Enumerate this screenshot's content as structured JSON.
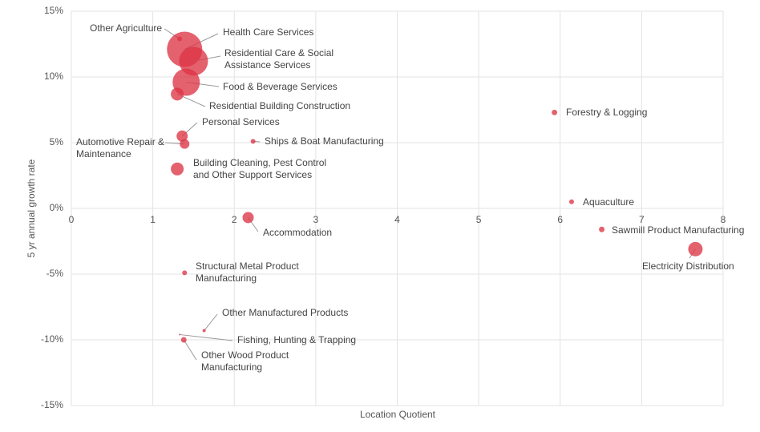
{
  "chart_data": {
    "type": "bubble",
    "x_label": "Location Quotient",
    "y_label": "5 yr annual growth rate",
    "color": "#dc3545",
    "grid": true,
    "categories": [
      "Other Agriculture",
      "Health Care Services",
      "Residential Care & Social Assistance Services",
      "Food & Beverage Services",
      "Residential Building Construction",
      "Personal Services",
      "Automotive Repair & Maintenance",
      "Ships & Boat Manufacturing",
      "Building Cleaning, Pest Control and Other Support Services",
      "Accommodation",
      "Forestry & Logging",
      "Aquaculture",
      "Sawmill Product Manufacturing",
      "Electricity Distribution",
      "Structural Metal Product Manufacturing",
      "Other Manufactured Products",
      "Fishing, Hunting & Trapping",
      "Other Wood Product Manufacturing"
    ],
    "x": [
      1.33,
      1.39,
      1.5,
      1.41,
      1.3,
      1.36,
      1.39,
      2.23,
      1.3,
      2.17,
      5.93,
      6.14,
      6.51,
      7.66,
      1.39,
      1.63,
      1.33,
      1.38
    ],
    "values": [
      12.9,
      12.1,
      11.2,
      9.6,
      8.7,
      5.5,
      4.9,
      5.1,
      3.0,
      -0.7,
      7.3,
      0.5,
      -1.6,
      -3.1,
      -4.9,
      -9.3,
      -9.6,
      -10.0
    ],
    "sizes": [
      9,
      484,
      324,
      289,
      64,
      49,
      36,
      9,
      64,
      49,
      12,
      9,
      12,
      81,
      9,
      4,
      1,
      12
    ],
    "xlim": [
      0,
      8
    ],
    "xticks": [
      0,
      1,
      2,
      3,
      4,
      5,
      6,
      7,
      8
    ],
    "ylim": [
      -15,
      15
    ],
    "yticks": [
      {
        "value": -15,
        "label": "-15%"
      },
      {
        "value": -10,
        "label": "-10%"
      },
      {
        "value": -5,
        "label": "-5%"
      },
      {
        "value": 0,
        "label": "0%"
      },
      {
        "value": 5,
        "label": "5%"
      },
      {
        "value": 10,
        "label": "10%"
      },
      {
        "value": 15,
        "label": "15%"
      }
    ]
  }
}
